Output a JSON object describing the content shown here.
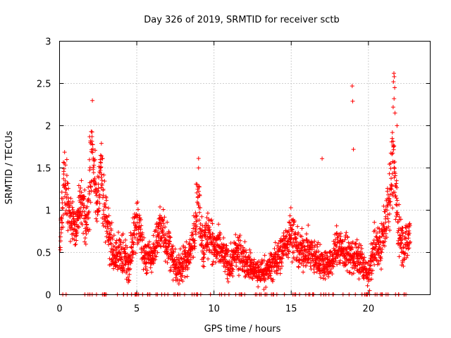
{
  "chart_data": {
    "type": "scatter",
    "title": "Day 326 of 2019, SRMTID for receiver sctb",
    "xlabel": "GPS time / hours",
    "ylabel": "SRMTID / TECUs",
    "xlim": [
      0,
      24
    ],
    "ylim": [
      0,
      3
    ],
    "xticks": [
      0,
      5,
      10,
      15,
      20
    ],
    "xtick_labels": [
      "0",
      "5",
      "10",
      "15",
      "20"
    ],
    "yticks": [
      0,
      0.5,
      1,
      1.5,
      2,
      2.5,
      3
    ],
    "ytick_labels": [
      "0",
      "0.5",
      "1",
      "1.5",
      "2",
      "2.5",
      "3"
    ],
    "grid": true,
    "marker": "+",
    "series": [
      {
        "name": "SRMTID",
        "color": "#ff0000",
        "profile": [
          {
            "x": 0.0,
            "y": 0.45
          },
          {
            "x": 0.3,
            "y": 1.45
          },
          {
            "x": 0.6,
            "y": 1.0
          },
          {
            "x": 1.0,
            "y": 0.75
          },
          {
            "x": 1.4,
            "y": 1.05
          },
          {
            "x": 1.8,
            "y": 0.85
          },
          {
            "x": 2.1,
            "y": 1.75
          },
          {
            "x": 2.4,
            "y": 1.1
          },
          {
            "x": 2.7,
            "y": 1.45
          },
          {
            "x": 3.0,
            "y": 0.9
          },
          {
            "x": 3.5,
            "y": 0.45
          },
          {
            "x": 4.0,
            "y": 0.5
          },
          {
            "x": 4.5,
            "y": 0.35
          },
          {
            "x": 5.0,
            "y": 0.95
          },
          {
            "x": 5.5,
            "y": 0.45
          },
          {
            "x": 6.0,
            "y": 0.45
          },
          {
            "x": 6.5,
            "y": 0.8
          },
          {
            "x": 7.0,
            "y": 0.6
          },
          {
            "x": 7.5,
            "y": 0.3
          },
          {
            "x": 8.0,
            "y": 0.35
          },
          {
            "x": 8.5,
            "y": 0.5
          },
          {
            "x": 9.0,
            "y": 1.15
          },
          {
            "x": 9.3,
            "y": 0.55
          },
          {
            "x": 9.6,
            "y": 0.75
          },
          {
            "x": 10.0,
            "y": 0.55
          },
          {
            "x": 10.5,
            "y": 0.5
          },
          {
            "x": 11.0,
            "y": 0.35
          },
          {
            "x": 11.5,
            "y": 0.5
          },
          {
            "x": 12.0,
            "y": 0.4
          },
          {
            "x": 12.5,
            "y": 0.3
          },
          {
            "x": 13.0,
            "y": 0.25
          },
          {
            "x": 13.5,
            "y": 0.3
          },
          {
            "x": 14.0,
            "y": 0.4
          },
          {
            "x": 14.5,
            "y": 0.55
          },
          {
            "x": 15.0,
            "y": 0.75
          },
          {
            "x": 15.5,
            "y": 0.5
          },
          {
            "x": 16.0,
            "y": 0.55
          },
          {
            "x": 16.5,
            "y": 0.45
          },
          {
            "x": 17.0,
            "y": 0.4
          },
          {
            "x": 17.5,
            "y": 0.35
          },
          {
            "x": 18.0,
            "y": 0.6
          },
          {
            "x": 18.5,
            "y": 0.5
          },
          {
            "x": 19.0,
            "y": 0.45
          },
          {
            "x": 19.5,
            "y": 0.4
          },
          {
            "x": 20.0,
            "y": 0.2
          },
          {
            "x": 20.4,
            "y": 0.6
          },
          {
            "x": 20.8,
            "y": 0.55
          },
          {
            "x": 21.2,
            "y": 1.0
          },
          {
            "x": 21.6,
            "y": 1.6
          },
          {
            "x": 21.9,
            "y": 0.85
          },
          {
            "x": 22.3,
            "y": 0.55
          },
          {
            "x": 22.7,
            "y": 0.75
          }
        ],
        "outliers": [
          {
            "x": 18.95,
            "y": 2.47
          },
          {
            "x": 18.98,
            "y": 2.29
          },
          {
            "x": 19.03,
            "y": 1.72
          },
          {
            "x": 21.65,
            "y": 2.62
          },
          {
            "x": 21.67,
            "y": 2.58
          },
          {
            "x": 21.62,
            "y": 2.52
          },
          {
            "x": 21.7,
            "y": 2.45
          },
          {
            "x": 21.66,
            "y": 2.32
          },
          {
            "x": 21.6,
            "y": 2.22
          },
          {
            "x": 21.72,
            "y": 2.15
          },
          {
            "x": 21.85,
            "y": 2.0
          },
          {
            "x": 21.55,
            "y": 1.92
          },
          {
            "x": 17.0,
            "y": 1.61
          },
          {
            "x": 9.0,
            "y": 1.5
          },
          {
            "x": 2.05,
            "y": 1.93
          },
          {
            "x": 1.95,
            "y": 1.87
          }
        ]
      }
    ]
  }
}
